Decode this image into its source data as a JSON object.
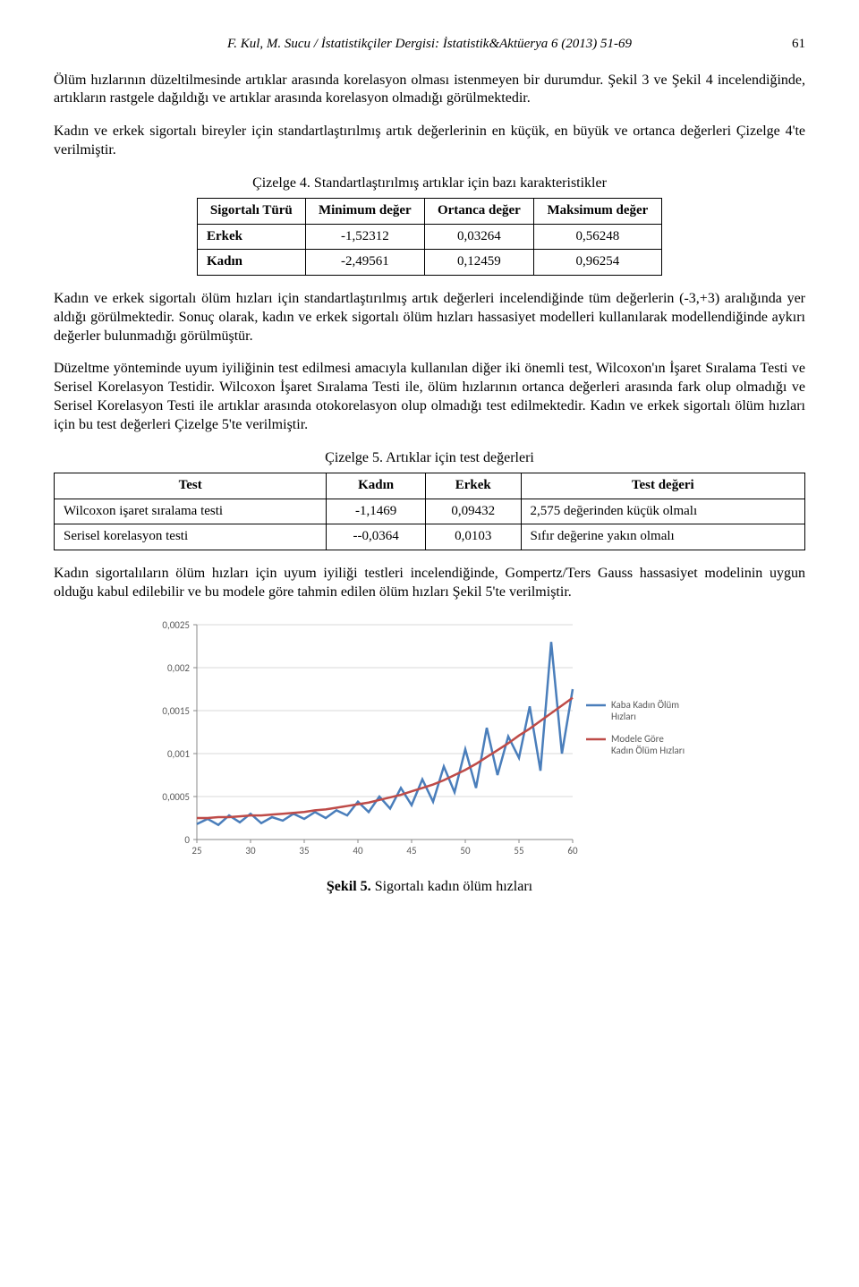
{
  "header": {
    "citation": "F. Kul, M. Sucu / İstatistikçiler Dergisi: İstatistik&Aktüerya 6 (2013) 51-69",
    "page_number": "61"
  },
  "paragraphs": {
    "p1": "Ölüm hızlarının düzeltilmesinde artıklar arasında korelasyon olması istenmeyen bir durumdur. Şekil 3 ve Şekil 4 incelendiğinde, artıkların rastgele dağıldığı ve artıklar arasında korelasyon olmadığı görülmektedir.",
    "p2": "Kadın ve erkek sigortalı bireyler için standartlaştırılmış artık değerlerinin en küçük, en büyük ve ortanca değerleri Çizelge 4'te verilmiştir.",
    "p3": "Kadın ve erkek sigortalı ölüm hızları için standartlaştırılmış artık değerleri incelendiğinde tüm değerlerin (-3,+3) aralığında yer aldığı görülmektedir. Sonuç olarak, kadın ve erkek sigortalı ölüm hızları hassasiyet modelleri kullanılarak modellendiğinde aykırı değerler bulunmadığı görülmüştür.",
    "p4": "Düzeltme yönteminde uyum iyiliğinin test edilmesi amacıyla kullanılan diğer iki önemli test, Wilcoxon'ın İşaret Sıralama Testi ve Serisel Korelasyon Testidir. Wilcoxon İşaret Sıralama Testi ile, ölüm hızlarının ortanca değerleri arasında fark olup olmadığı ve Serisel Korelasyon Testi ile artıklar arasında otokorelasyon olup olmadığı test edilmektedir. Kadın ve erkek sigortalı ölüm hızları için bu test değerleri Çizelge 5'te verilmiştir.",
    "p5": "Kadın sigortalıların ölüm hızları için uyum iyiliği testleri incelendiğinde, Gompertz/Ters Gauss hassasiyet modelinin uygun olduğu kabul edilebilir ve bu modele göre tahmin edilen ölüm hızları Şekil 5'te verilmiştir."
  },
  "table4": {
    "caption": "Çizelge 4. Standartlaştırılmış artıklar için bazı karakteristikler",
    "columns": [
      "Sigortalı Türü",
      "Minimum değer",
      "Ortanca değer",
      "Maksimum değer"
    ],
    "rows": [
      [
        "Erkek",
        "-1,52312",
        "0,03264",
        "0,56248"
      ],
      [
        "Kadın",
        "-2,49561",
        "0,12459",
        "0,96254"
      ]
    ]
  },
  "table5": {
    "caption": "Çizelge 5. Artıklar için test değerleri",
    "columns": [
      "Test",
      "Kadın",
      "Erkek",
      "Test değeri"
    ],
    "rows": [
      [
        "Wilcoxon işaret sıralama testi",
        "-1,1469",
        "0,09432",
        "2,575 değerinden küçük olmalı"
      ],
      [
        "Serisel korelasyon testi",
        "--0,0364",
        "0,0103",
        "Sıfır değerine yakın olmalı"
      ]
    ]
  },
  "chart": {
    "type": "line",
    "title": "",
    "fig_caption": "Şekil 5. Sigortalı kadın ölüm hızları",
    "xlim": [
      25,
      60
    ],
    "ylim": [
      0,
      0.0025
    ],
    "xtick_step": 5,
    "yticks": [
      0,
      0.0005,
      0.001,
      0.0015,
      0.002,
      0.0025
    ],
    "ytick_labels": [
      "0",
      "0,0005",
      "0,001",
      "0,0015",
      "0,002",
      "0,0025"
    ],
    "xtick_labels": [
      "25",
      "30",
      "35",
      "40",
      "45",
      "50",
      "55",
      "60"
    ],
    "grid_color": "#d9d9d9",
    "background_color": "#ffffff",
    "axis_color": "#888888",
    "tick_font_size": 11,
    "tick_color": "#595959",
    "legend_font_size": 11,
    "series": [
      {
        "name": "Kaba Kadın Ölüm Hızları",
        "color": "#4a7ebb",
        "line_width": 2.5,
        "x": [
          25,
          26,
          27,
          28,
          29,
          30,
          31,
          32,
          33,
          34,
          35,
          36,
          37,
          38,
          39,
          40,
          41,
          42,
          43,
          44,
          45,
          46,
          47,
          48,
          49,
          50,
          51,
          52,
          53,
          54,
          55,
          56,
          57,
          58,
          59,
          60
        ],
        "y": [
          0.00018,
          0.00024,
          0.00017,
          0.00028,
          0.0002,
          0.0003,
          0.00019,
          0.00026,
          0.00022,
          0.0003,
          0.00024,
          0.00032,
          0.00025,
          0.00034,
          0.00028,
          0.00044,
          0.00032,
          0.0005,
          0.00036,
          0.0006,
          0.0004,
          0.0007,
          0.00044,
          0.00085,
          0.00055,
          0.00105,
          0.0006,
          0.0013,
          0.00075,
          0.0012,
          0.00095,
          0.00155,
          0.0008,
          0.0023,
          0.001,
          0.00175
        ]
      },
      {
        "name": "Modele Göre Kadın Ölüm Hızları",
        "color": "#be4b48",
        "line_width": 2.5,
        "x": [
          25,
          26,
          27,
          28,
          29,
          30,
          31,
          32,
          33,
          34,
          35,
          36,
          37,
          38,
          39,
          40,
          41,
          42,
          43,
          44,
          45,
          46,
          47,
          48,
          49,
          50,
          51,
          52,
          53,
          54,
          55,
          56,
          57,
          58,
          59,
          60
        ],
        "y": [
          0.00025,
          0.00025,
          0.00026,
          0.00026,
          0.00027,
          0.00028,
          0.00028,
          0.00029,
          0.0003,
          0.00031,
          0.00032,
          0.00034,
          0.00035,
          0.00037,
          0.00039,
          0.00041,
          0.00043,
          0.00046,
          0.00049,
          0.00052,
          0.00056,
          0.0006,
          0.00064,
          0.00069,
          0.00075,
          0.00081,
          0.00088,
          0.00096,
          0.00104,
          0.00112,
          0.00121,
          0.00129,
          0.00138,
          0.00147,
          0.00156,
          0.00165
        ]
      }
    ],
    "legend_position": "right"
  }
}
